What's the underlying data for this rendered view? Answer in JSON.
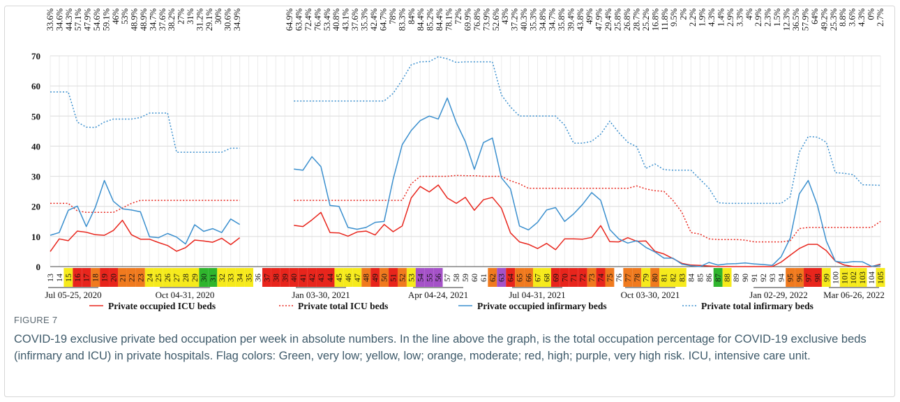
{
  "chart_data": {
    "type": "line",
    "occupancy_labels": [
      [
        "33.6%",
        "34.6%",
        "44.3%",
        "57.1%",
        "47.9%",
        "54.6%",
        "59.1%",
        "46%",
        "53%",
        "48.9%",
        "48.9%",
        "34.7%",
        "37.6%",
        "38.2%",
        "27%",
        "31%",
        "31.2%",
        "29.1%",
        "30%",
        "30.6%",
        "34.9%"
      ],
      [
        "64.9%",
        "63.4%",
        "72.4%",
        "76.4%",
        "53.4%",
        "40.8%",
        "43.1%",
        "37.6%",
        "35.3%",
        "42.4%",
        "64.7%",
        "78%",
        "83.3%",
        "84%",
        "84.4%",
        "85.2%",
        "84.4%",
        "78.1%",
        "72%",
        "69.9%",
        "76.8%",
        "73.9%",
        "52.6%",
        "43%",
        "37.2%",
        "40.3%",
        "35.3%",
        "34.8%",
        "34.7%",
        "35.8%",
        "39.4%",
        "43.8%",
        "49%",
        "47.9%",
        "29.4%",
        "25.8%",
        "26.8%",
        "28.7%",
        "25.2%",
        "16.8%",
        "11.8%",
        "9.5%",
        "2%",
        "2.2%",
        "1.9%",
        "4.3%",
        "1.4%",
        "2.9%",
        "3.3%",
        "4%",
        "2.9%",
        "2.3%",
        "1.5%",
        "12.3%",
        "36.5%",
        "57.9%",
        "64%",
        "49.2%",
        "25.3%",
        "8.8%",
        "3.6%",
        "4.3%",
        "0%",
        "2.7%"
      ]
    ],
    "x": [
      13,
      14,
      15,
      16,
      17,
      18,
      19,
      20,
      21,
      22,
      23,
      24,
      25,
      26,
      27,
      28,
      29,
      30,
      31,
      32,
      33,
      34,
      35,
      36,
      37,
      38,
      39,
      40,
      41,
      42,
      43,
      44,
      45,
      46,
      47,
      48,
      49,
      50,
      51,
      52,
      53,
      54,
      55,
      56,
      57,
      58,
      59,
      60,
      61,
      62,
      63,
      64,
      65,
      66,
      67,
      68,
      69,
      70,
      71,
      72,
      73,
      74,
      75,
      76,
      77,
      78,
      79,
      80,
      81,
      82,
      83,
      84,
      85,
      86,
      87,
      88,
      89,
      90,
      91,
      92,
      93,
      94,
      95,
      96,
      97,
      98,
      99,
      100,
      101,
      102,
      103,
      104,
      105
    ],
    "flags": [
      "#ffffff",
      "#ffffff",
      "#f6ea1c",
      "#e8251c",
      "#e8251c",
      "#f07a1e",
      "#e8251c",
      "#e8251c",
      "#f07a1e",
      "#f07a1e",
      "#f07a1e",
      "#f6ea1c",
      "#f6ea1c",
      "#f6ea1c",
      "#f6ea1c",
      "#f6ea1c",
      "#f6ea1c",
      "#2fb52d",
      "#2fb52d",
      "#f6ea1c",
      "#f6ea1c",
      "#f6ea1c",
      "#f6ea1c",
      "#ffffff",
      "#e8251c",
      "#e8251c",
      "#e8251c",
      "#e8251c",
      "#e8251c",
      "#e8251c",
      "#e8251c",
      "#e8251c",
      "#f6ea1c",
      "#f6ea1c",
      "#f6ea1c",
      "#f07a1e",
      "#e8251c",
      "#f07a1e",
      "#e8251c",
      "#f07a1e",
      "#f6ea1c",
      "#a552c8",
      "#a552c8",
      "#a552c8",
      "#ffffff",
      "#ffffff",
      "#ffffff",
      "#ffffff",
      "#ffffff",
      "#f07a1e",
      "#a552c8",
      "#e8251c",
      "#f07a1e",
      "#f07a1e",
      "#f6ea1c",
      "#f6ea1c",
      "#e8251c",
      "#e8251c",
      "#e8251c",
      "#e8251c",
      "#f07a1e",
      "#e8251c",
      "#f07a1e",
      "#ffffff",
      "#f07a1e",
      "#f07a1e",
      "#f6ea1c",
      "#f07a1e",
      "#f6ea1c",
      "#f6ea1c",
      "#f6ea1c",
      "#ffffff",
      "#ffffff",
      "#ffffff",
      "#2fb52d",
      "#f6ea1c",
      "#ffffff",
      "#ffffff",
      "#ffffff",
      "#ffffff",
      "#ffffff",
      "#ffffff",
      "#f07a1e",
      "#f07a1e",
      "#e8251c",
      "#e8251c",
      "#f6ea1c",
      "#ffffff",
      "#f6ea1c",
      "#f6ea1c",
      "#f6ea1c",
      "#ffffff",
      "#f6ea1c"
    ],
    "date_labels": [
      "Jul 05-25, 2020",
      "Oct 04-31, 2020",
      "Jan 03-30, 2021",
      "Apr 04-24, 2021",
      "Jul 04-31, 2021",
      "Oct 03-30, 2021",
      "Jan 02-29, 2022",
      "Mar 06-26, 2022"
    ],
    "xlim": [
      13,
      105
    ],
    "ylim": [
      0,
      70
    ],
    "yticks": [
      0,
      10,
      20,
      30,
      40,
      50,
      60,
      70
    ],
    "grid": true,
    "legend": "bottom",
    "series": [
      {
        "name": "Private occupied ICU beds",
        "color": "#e8251c",
        "dash": "solid",
        "values": [
          5,
          9.2,
          8.6,
          11.8,
          11.4,
          10.6,
          10.4,
          12,
          15.4,
          10.6,
          9.1,
          9.1,
          8,
          7,
          5.1,
          6.3,
          8.8,
          8.5,
          8.1,
          9.4,
          7.3,
          9.6,
          null,
          null,
          null,
          null,
          null,
          13.7,
          13.3,
          15.5,
          18,
          11.3,
          11.2,
          10.1,
          11.5,
          11.8,
          10.5,
          14,
          11.6,
          13.5,
          22.8,
          26.6,
          24.8,
          27.1,
          22.8,
          21,
          23,
          18.7,
          22.2,
          23,
          19.4,
          11.2,
          8.2,
          7.4,
          6,
          7.7,
          5.6,
          9.2,
          9.2,
          9.1,
          9.7,
          13.6,
          8.3,
          8.2,
          9.6,
          8.4,
          8.5,
          5.1,
          4.2,
          2.7,
          1.1,
          0.5,
          0.4,
          0.2,
          0,
          0,
          0,
          0,
          0,
          0,
          0,
          1.5,
          3.8,
          6,
          7.4,
          7.4,
          5.3,
          1.8,
          0.5,
          0,
          0,
          0,
          0.8
        ]
      },
      {
        "name": "Private total ICU beds",
        "color": "#e8251c",
        "dash": "dotted",
        "values": [
          21,
          21,
          21,
          18.5,
          18,
          18,
          18,
          18,
          19.5,
          21,
          22,
          22,
          22,
          22,
          22,
          22,
          22,
          22,
          22,
          22,
          22,
          22,
          null,
          null,
          null,
          null,
          null,
          22,
          22,
          22,
          22,
          22,
          22,
          22,
          22,
          22,
          22,
          22,
          22,
          22,
          27.5,
          30,
          30,
          30,
          30,
          30.3,
          30.2,
          30.2,
          30,
          30,
          30,
          28.5,
          27.5,
          26,
          26,
          26,
          26,
          26,
          26,
          26,
          26,
          26,
          26,
          26,
          26,
          26.8,
          25.8,
          25.2,
          25,
          22,
          18,
          11.3,
          10.8,
          9.2,
          9,
          9,
          9,
          8.8,
          8.2,
          8.2,
          8.2,
          8.2,
          8.6,
          12.6,
          13,
          13,
          13,
          13,
          13,
          13,
          13,
          13,
          15
        ]
      },
      {
        "name": "Private occupied infirmary beds",
        "color": "#3a8fce",
        "dash": "solid",
        "values": [
          10.4,
          11.3,
          18.7,
          20.1,
          13.3,
          19.7,
          28.6,
          21.7,
          19.2,
          18.8,
          18.2,
          9.9,
          9.6,
          11,
          9.8,
          7.5,
          13.9,
          11.7,
          12.6,
          11.3,
          15.8,
          14,
          null,
          null,
          null,
          null,
          null,
          32.4,
          32,
          36.5,
          33.2,
          20.3,
          20,
          13,
          12.4,
          13,
          14.7,
          15,
          29,
          40.5,
          45.2,
          48.5,
          50,
          49,
          56,
          47.8,
          41.5,
          32.3,
          41.2,
          42.7,
          29.5,
          25.8,
          13.5,
          12.2,
          14.7,
          18.8,
          19.6,
          15,
          17.5,
          20.7,
          24.6,
          22,
          12.3,
          9.2,
          7.8,
          8.6,
          6.4,
          4.9,
          2.8,
          2.8,
          0.8,
          0.3,
          0,
          1.4,
          0.5,
          0.9,
          1,
          1.2,
          0.9,
          0.7,
          0.4,
          3.3,
          9.5,
          24.1,
          28.6,
          20.5,
          8.5,
          1.8,
          1.3,
          1.7,
          1.6,
          0.1,
          0.5
        ]
      },
      {
        "name": "Private total infirmary beds",
        "color": "#3a8fce",
        "dash": "dotted",
        "values": [
          58,
          58,
          58,
          48,
          46.3,
          46.2,
          48,
          49,
          49,
          49,
          49.5,
          51,
          51,
          51,
          38,
          38,
          38,
          38,
          38,
          38,
          39.3,
          39.3,
          null,
          null,
          null,
          null,
          null,
          55,
          55,
          55,
          55,
          55,
          55,
          55,
          55,
          55,
          55,
          55,
          57.5,
          62,
          67,
          68,
          68.1,
          69.7,
          69,
          67.8,
          68,
          68,
          68,
          68,
          57,
          53,
          50,
          50,
          50,
          50,
          50,
          47,
          41,
          41,
          41.6,
          44,
          48.3,
          44.5,
          41.3,
          39.8,
          32.6,
          34.1,
          32.2,
          32,
          32,
          32,
          29,
          26,
          21.2,
          21,
          21,
          21,
          21,
          21,
          21,
          21,
          23.2,
          38,
          43.2,
          43,
          41.3,
          31.2,
          31,
          30.5,
          27.2,
          27.1,
          27
        ]
      }
    ],
    "figure_label": "FIGURE 7",
    "caption": "COVID-19 exclusive private bed occupation per week in absolute numbers. In the line above the graph, is the total occupation percentage for COVID-19 exclusive beds (infirmary and ICU) in private hospitals. Flag colors: Green, very low; yellow, low; orange, moderate; red, high; purple, very high risk. ICU, intensive care unit."
  }
}
